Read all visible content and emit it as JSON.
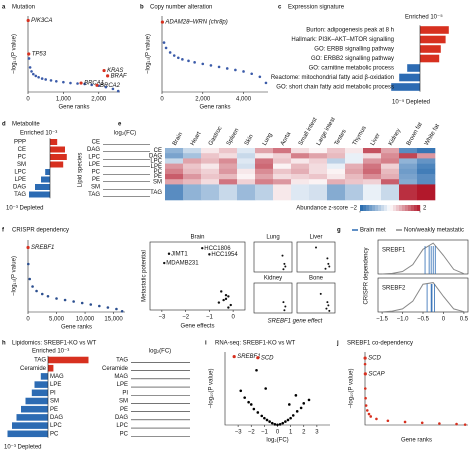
{
  "panels": {
    "a": {
      "label": "a",
      "title": "Mutation",
      "y_label": "−log₁₀(P value)",
      "x_label": "Gene ranks",
      "color": "#3b5ba9",
      "xlim": [
        0,
        2600
      ],
      "ylim": [
        0,
        17
      ],
      "xticks": [
        0,
        {
          "value": 1000,
          "label": "1,000"
        },
        {
          "value": 2000,
          "label": "2,000"
        }
      ],
      "points": {
        "x": [
          30,
          60,
          100,
          150,
          220,
          300,
          400,
          500,
          650,
          800,
          1000,
          1200,
          1400,
          1600,
          1800,
          2000,
          2200,
          2400,
          2550
        ],
        "y": [
          7.5,
          5.5,
          4.6,
          4,
          3.6,
          3.3,
          3,
          2.8,
          2.6,
          2.4,
          2.2,
          2,
          1.9,
          1.8,
          1.6,
          1.4,
          1.1,
          0.7,
          0.2
        ]
      },
      "genes": [
        {
          "name": "PIK3CA",
          "x": 5,
          "y": 16
        },
        {
          "name": "TP53",
          "x": 20,
          "y": 8.5
        },
        {
          "name": "BRCA1",
          "x": 1500,
          "y": 2
        },
        {
          "name": "KRAS",
          "x": 2150,
          "y": 4.8
        },
        {
          "name": "BRAF",
          "x": 2250,
          "y": 3.6
        },
        {
          "name": "BRCA2",
          "x": 1950,
          "y": 1.5
        }
      ]
    },
    "b": {
      "label": "b",
      "title": "Copy number alteration",
      "y_label": "−log₁₀(P value)",
      "x_label": "Gene ranks",
      "color": "#3b5ba9",
      "xlim": [
        0,
        5200
      ],
      "ylim": [
        0,
        10
      ],
      "xticks": [
        0,
        {
          "value": 2000,
          "label": "2,000"
        },
        {
          "value": 4000,
          "label": "4,000"
        }
      ],
      "points": {
        "x": [
          20,
          100,
          200,
          400,
          600,
          800,
          1000,
          1300,
          1600,
          2000,
          2400,
          2800,
          3200,
          3600,
          4000,
          4400,
          4800,
          5100
        ],
        "y": [
          9.2,
          6.5,
          5.8,
          5.2,
          4.8,
          4.5,
          4.3,
          4.1,
          3.9,
          3.7,
          3.5,
          3.3,
          3.1,
          2.9,
          2.7,
          2.4,
          2,
          1.2
        ]
      },
      "genes": [
        {
          "name": "ADAM28–WRN (chr8p)",
          "x": 20,
          "y": 9.2
        }
      ]
    },
    "c": {
      "label": "c",
      "title": "Expression signature",
      "enriched": "Enriched 10⁻⁵",
      "depleted": "10⁻⁵ Depleted",
      "pos_color": "#d7301f",
      "neg_color": "#2c6bb3",
      "categories": [
        "Burton: adipogenesis peak at 8 h",
        "Hallmark: PI3K–AKT–MTOR signalling",
        "GO: ERBB signalling pathway",
        "GO: ERBB2 signalling pathway",
        "GO: carnitine metabolic process",
        "Reactome: mitochondrial fatty acid β-oxidation",
        "GO: short chain fatty acid metabolic process"
      ],
      "values": [
        3.6,
        3.2,
        2.6,
        2.4,
        -1.6,
        -2.6,
        -3.6
      ]
    },
    "d": {
      "label": "d",
      "title": "Metabolite",
      "enriched": "Enriched 10⁻³",
      "depleted": "10⁻³ Depleted",
      "species_label": "Lipid species",
      "fc_label": "log₂(FC)",
      "pos_color": "#d7301f",
      "neg_color": "#2c6bb3",
      "categories": [
        "PPP",
        "CE",
        "PC",
        "SM",
        "LPC",
        "LPE",
        "DAG",
        "TAG"
      ],
      "values": [
        1.2,
        2.5,
        2.8,
        2.2,
        -0.8,
        -1.5,
        -2.5,
        -3.5
      ],
      "fc_species": [
        "CE",
        "DAG",
        "LPC",
        "LPE",
        "PC",
        "PE",
        "SM",
        "TAG"
      ]
    },
    "e": {
      "label": "e",
      "colorbar_label": "Abundance z-score",
      "zlim": [
        -2,
        2
      ],
      "zticks": [
        {
          "value": -2,
          "label": "−2"
        },
        2
      ],
      "columns": [
        "Brain",
        "Heart",
        "Gastroc",
        "Spleen",
        "Skin",
        "Lung",
        "Aorta",
        "Small intest",
        "Large intest",
        "Testes",
        "Thymus",
        "Liver",
        "Kidney",
        "Brown fat",
        "White fat"
      ],
      "rows": [
        "CE",
        "DAG",
        "LPC",
        "LPE",
        "PC",
        "PE",
        "SM",
        "TAG"
      ],
      "matrix": [
        [
          -1,
          -0.5,
          0.2,
          0.5,
          -0.3,
          0.8,
          1.2,
          0.3,
          0.1,
          0.5,
          0.2,
          1.5,
          0.8,
          -1.5,
          -1.8
        ],
        [
          -1.2,
          -0.8,
          0.5,
          0.3,
          -0.5,
          0.2,
          0.4,
          1.1,
          0.8,
          0.6,
          -0.2,
          0.3,
          1,
          1.6,
          0.9
        ],
        [
          -0.5,
          0.8,
          0.6,
          1,
          -0.3,
          1.2,
          0.5,
          0.2,
          0.4,
          -0.6,
          -0.2,
          0.9,
          1.1,
          -1,
          -1.4
        ],
        [
          0.9,
          0.5,
          0.2,
          0.8,
          -0.4,
          1.3,
          0.1,
          0.6,
          0.3,
          -0.2,
          0.7,
          1.2,
          0.4,
          -1.2,
          -1.6
        ],
        [
          1.1,
          0.6,
          0.4,
          0.9,
          0.2,
          1,
          0.5,
          0.7,
          0.3,
          0.1,
          0.8,
          1.3,
          0.6,
          -1.3,
          -1.7
        ],
        [
          1.4,
          0.9,
          0.5,
          0.6,
          0.1,
          0.8,
          0.3,
          0.4,
          0.5,
          0.2,
          0.6,
          1,
          0.7,
          -1.2,
          -1.5
        ],
        [
          0.8,
          0.6,
          0.3,
          1.2,
          0.4,
          1.1,
          0.9,
          0.2,
          0.1,
          0.7,
          0.5,
          0.4,
          1.4,
          -1.1,
          -1.5
        ],
        [
          -1.5,
          -1,
          -0.8,
          -0.5,
          -0.9,
          -0.6,
          0.2,
          -0.3,
          -0.4,
          -1.1,
          -0.7,
          -0.2,
          -0.5,
          1.8,
          2
        ]
      ]
    },
    "f": {
      "label": "f",
      "title": "CRISPR dependency",
      "y_label": "−log₁₀(P value)",
      "x_label": "Gene ranks",
      "color": "#2c4f8f",
      "xlim": [
        0,
        17000
      ],
      "ylim": [
        0,
        4.8
      ],
      "xticks": [
        0,
        {
          "value": 5000,
          "label": "5,000"
        },
        {
          "value": 10000,
          "label": "10,000"
        },
        {
          "value": 15000,
          "label": "15,000"
        }
      ],
      "points": {
        "x": [
          50,
          300,
          800,
          1500,
          2500,
          3500,
          5000,
          6500,
          8000,
          9500,
          11000,
          12500,
          14000,
          15500,
          16500
        ],
        "y": [
          3.2,
          2.2,
          1.7,
          1.4,
          1.2,
          1.05,
          0.9,
          0.8,
          0.7,
          0.6,
          0.5,
          0.4,
          0.3,
          0.2,
          0.05
        ]
      },
      "genes": [
        {
          "name": "SREBF1",
          "x": 10,
          "y": 4.3
        }
      ]
    },
    "met": {
      "y_label": "Metastatic potential",
      "x_label": "Gene effects",
      "gene_effect_label": "SREBF1 gene effect",
      "xlim": [
        -3.5,
        0.5
      ],
      "ylim": [
        -4,
        1.5
      ],
      "xticks": [
        {
          "value": -3,
          "label": "−3"
        },
        {
          "value": -2,
          "label": "−2"
        },
        {
          "value": -1,
          "label": "−1"
        },
        0
      ],
      "brain": {
        "title": "Brain",
        "named": [
          {
            "name": "HCC1806",
            "x": -1.3,
            "y": 1.0
          },
          {
            "name": "JIMT1",
            "x": -2.7,
            "y": 0.55
          },
          {
            "name": "HCC1954",
            "x": -1.0,
            "y": 0.5
          },
          {
            "name": "MDAMB231",
            "x": -2.9,
            "y": -0.2
          }
        ],
        "x": [
          -0.3,
          -0.4,
          -0.2,
          -0.6,
          -0.1,
          -0.3,
          -0.5,
          -0.2
        ],
        "y": [
          -2.8,
          -3.2,
          -2.9,
          -3.4,
          -3.6,
          -3.1,
          -2.5,
          -3.8
        ]
      },
      "small": [
        {
          "title": "Lung",
          "x": [
            -0.5,
            -0.3,
            -0.2,
            -0.4
          ],
          "y": [
            -1,
            -2.5,
            -3,
            -3.5
          ]
        },
        {
          "title": "Liver",
          "x": [
            -1.5,
            -0.3,
            -0.2,
            -0.1,
            -0.5
          ],
          "y": [
            0.5,
            -1.5,
            -2.5,
            -3,
            -3.4
          ]
        },
        {
          "title": "Kidney",
          "x": [
            -0.4,
            -0.2,
            -0.3
          ],
          "y": [
            -2,
            -2.8,
            -3.5
          ]
        },
        {
          "title": "Bone",
          "x": [
            -1,
            -0.3,
            -0.2,
            -0.4,
            -0.1
          ],
          "y": [
            -0.5,
            -2,
            -2.6,
            -3.2,
            -3.6
          ]
        }
      ]
    },
    "g": {
      "label": "g",
      "y_label": "CRISPR dependency",
      "legend": [
        "Brain met",
        "Non/weakly metastatic"
      ],
      "colors": [
        "#2c6bb3",
        "#888888"
      ],
      "xlim": [
        -1.6,
        0.6
      ],
      "ylim": [
        0,
        1.1
      ],
      "xticks": [
        {
          "value": -1.5,
          "label": "−1.5"
        },
        {
          "value": -1,
          "label": "−1.0"
        },
        {
          "value": -0.5,
          "label": "−0.5"
        },
        0,
        0.5
      ],
      "grid_x": [
        -1.5,
        -1.25,
        -1,
        -0.75,
        -0.5,
        -0.25,
        0,
        0.25,
        0.5
      ],
      "genes": [
        {
          "name": "SREBF1",
          "density": [
            0,
            0.02,
            0.08,
            0.3,
            0.8,
            1,
            0.6,
            0.15,
            0.01
          ],
          "brain": [
            -0.45,
            -0.35,
            -0.3,
            -0.25,
            -0.2
          ]
        },
        {
          "name": "SREBF2",
          "density": [
            0,
            0.03,
            0.1,
            0.35,
            0.9,
            0.95,
            0.5,
            0.1,
            0.01
          ],
          "brain": [
            -0.4,
            -0.3,
            -0.28,
            -0.22
          ]
        }
      ]
    },
    "h": {
      "label": "h",
      "title": "Lipidomics: SREBF1-KO vs WT",
      "enriched": "Enriched 10⁻³",
      "depleted": "10⁻³ Depleted",
      "fc_label": "log₂(FC)",
      "pos_color": "#d7301f",
      "neg_color": "#2c6bb3",
      "categories": [
        "TAG",
        "Ceramide",
        "MAG",
        "LPE",
        "PI",
        "SM",
        "PE",
        "DAG",
        "LPC",
        "PC"
      ],
      "values": [
        4.5,
        0.6,
        -0.8,
        -1.5,
        -1.8,
        -2.5,
        -3,
        -3.5,
        -4,
        -4.5
      ],
      "fc_species": [
        "TAG",
        "Ceramide",
        "MAG",
        "LPE",
        "PI",
        "SM",
        "PE",
        "DAG",
        "LPC",
        "PC"
      ]
    },
    "i": {
      "label": "i",
      "title": "RNA-seq: SREBF1-KO vs WT",
      "y_label": "−log₁₀(P value)",
      "x_label": "log₂(FC)",
      "color": "#000000",
      "xlim": [
        -4,
        4
      ],
      "ylim": [
        0,
        320
      ],
      "xticks": [
        {
          "value": -3,
          "label": "−3"
        },
        {
          "value": -2,
          "label": "−2"
        },
        {
          "value": -1,
          "label": "−1"
        },
        0,
        1,
        2,
        3
      ],
      "points": {
        "x": [
          -2.8,
          -2.5,
          -2.2,
          -2,
          -1.8,
          -1.5,
          -1.2,
          -1,
          -0.8,
          -0.6,
          -0.4,
          -0.2,
          0,
          0.2,
          0.4,
          0.6,
          0.8,
          1,
          1.2,
          1.5,
          1.8,
          2,
          2.4,
          -1.6,
          1.4,
          -0.9,
          0.9
        ],
        "y": [
          150,
          120,
          100,
          90,
          70,
          55,
          40,
          30,
          22,
          15,
          8,
          3,
          1,
          3,
          8,
          15,
          22,
          30,
          42,
          60,
          75,
          95,
          110,
          240,
          130,
          160,
          90
        ]
      },
      "genes": [
        {
          "name": "SREBF1",
          "x": -3.3,
          "y": 300
        },
        {
          "name": "SCD",
          "x": -1.5,
          "y": 295
        }
      ]
    },
    "j": {
      "label": "j",
      "title": "SREBF1 co-dependency",
      "y_label": "−log₁₀(P value)",
      "x_label": "Gene ranks",
      "color": "#d7301f",
      "xlim": [
        0,
        18000
      ],
      "ylim": [
        0,
        60
      ],
      "points": {
        "x": [
          10,
          50,
          100,
          200,
          400,
          700,
          1000,
          2000,
          4000,
          7000,
          10000,
          13000,
          16000,
          17500
        ],
        "y": [
          50,
          30,
          22,
          16,
          12,
          9,
          7,
          5,
          3.5,
          2.5,
          1.8,
          1.2,
          0.8,
          0.3
        ]
      },
      "genes": [
        {
          "name": "SCD",
          "x": 20,
          "y": 55
        },
        {
          "name": "SCAP",
          "x": 60,
          "y": 42
        }
      ]
    }
  }
}
